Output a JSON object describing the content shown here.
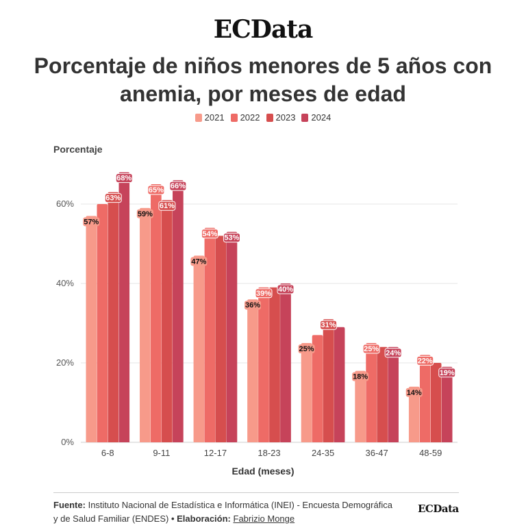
{
  "brand": "ECData",
  "title": "Porcentaje de niños menores de 5 años con anemia, por meses de edad",
  "legend": [
    {
      "label": "2021",
      "color": "#f79a8a"
    },
    {
      "label": "2022",
      "color": "#ee6b66"
    },
    {
      "label": "2023",
      "color": "#d64e4e"
    },
    {
      "label": "2024",
      "color": "#c6435a"
    }
  ],
  "chart_data": {
    "type": "bar",
    "title": "Porcentaje de niños menores de 5 años con anemia, por meses de edad",
    "xlabel": "Edad (meses)",
    "ylabel": "Porcentaje",
    "ylim": [
      0,
      70
    ],
    "yticks": [
      "0%",
      "20%",
      "40%",
      "60%"
    ],
    "grid": true,
    "legend_position": "top-center",
    "categories": [
      "6-8",
      "9-11",
      "12-17",
      "18-23",
      "24-35",
      "36-47",
      "48-59"
    ],
    "series": [
      {
        "name": "2021",
        "color": "#f79a8a",
        "values": [
          57,
          59,
          47,
          36,
          25,
          18,
          14
        ]
      },
      {
        "name": "2022",
        "color": "#ee6b66",
        "values": [
          60,
          65,
          54,
          39,
          27,
          25,
          22
        ]
      },
      {
        "name": "2023",
        "color": "#d64e4e",
        "values": [
          63,
          61,
          52,
          39,
          31,
          24,
          20
        ]
      },
      {
        "name": "2024",
        "color": "#c6435a",
        "values": [
          68,
          66,
          53,
          40,
          29,
          24,
          19
        ]
      }
    ],
    "data_labels": [
      {
        "category": "6-8",
        "series": "2021",
        "text": "57%"
      },
      {
        "category": "6-8",
        "series": "2023",
        "text": "63%"
      },
      {
        "category": "6-8",
        "series": "2024",
        "text": "68%"
      },
      {
        "category": "9-11",
        "series": "2021",
        "text": "59%"
      },
      {
        "category": "9-11",
        "series": "2022",
        "text": "65%"
      },
      {
        "category": "9-11",
        "series": "2023",
        "text": "61%"
      },
      {
        "category": "9-11",
        "series": "2024",
        "text": "66%"
      },
      {
        "category": "12-17",
        "series": "2021",
        "text": "47%"
      },
      {
        "category": "12-17",
        "series": "2022",
        "text": "54%"
      },
      {
        "category": "12-17",
        "series": "2024",
        "text": "53%"
      },
      {
        "category": "18-23",
        "series": "2021",
        "text": "36%"
      },
      {
        "category": "18-23",
        "series": "2022",
        "text": "39%"
      },
      {
        "category": "18-23",
        "series": "2024",
        "text": "40%"
      },
      {
        "category": "24-35",
        "series": "2021",
        "text": "25%"
      },
      {
        "category": "24-35",
        "series": "2023",
        "text": "31%"
      },
      {
        "category": "36-47",
        "series": "2021",
        "text": "18%"
      },
      {
        "category": "36-47",
        "series": "2022",
        "text": "25%"
      },
      {
        "category": "36-47",
        "series": "2024",
        "text": "24%"
      },
      {
        "category": "48-59",
        "series": "2021",
        "text": "14%"
      },
      {
        "category": "48-59",
        "series": "2022",
        "text": "22%"
      },
      {
        "category": "48-59",
        "series": "2024",
        "text": "19%"
      }
    ]
  },
  "footer": {
    "source_label": "Fuente:",
    "source_text": "Instituto Nacional de Estadística e Informática (INEI) - Encuesta Demográfica y de Salud Familiar (ENDES)",
    "separator": "•",
    "credit_label": "Elaboración:",
    "author": "Fabrizio Monge",
    "brand": "ECData"
  }
}
